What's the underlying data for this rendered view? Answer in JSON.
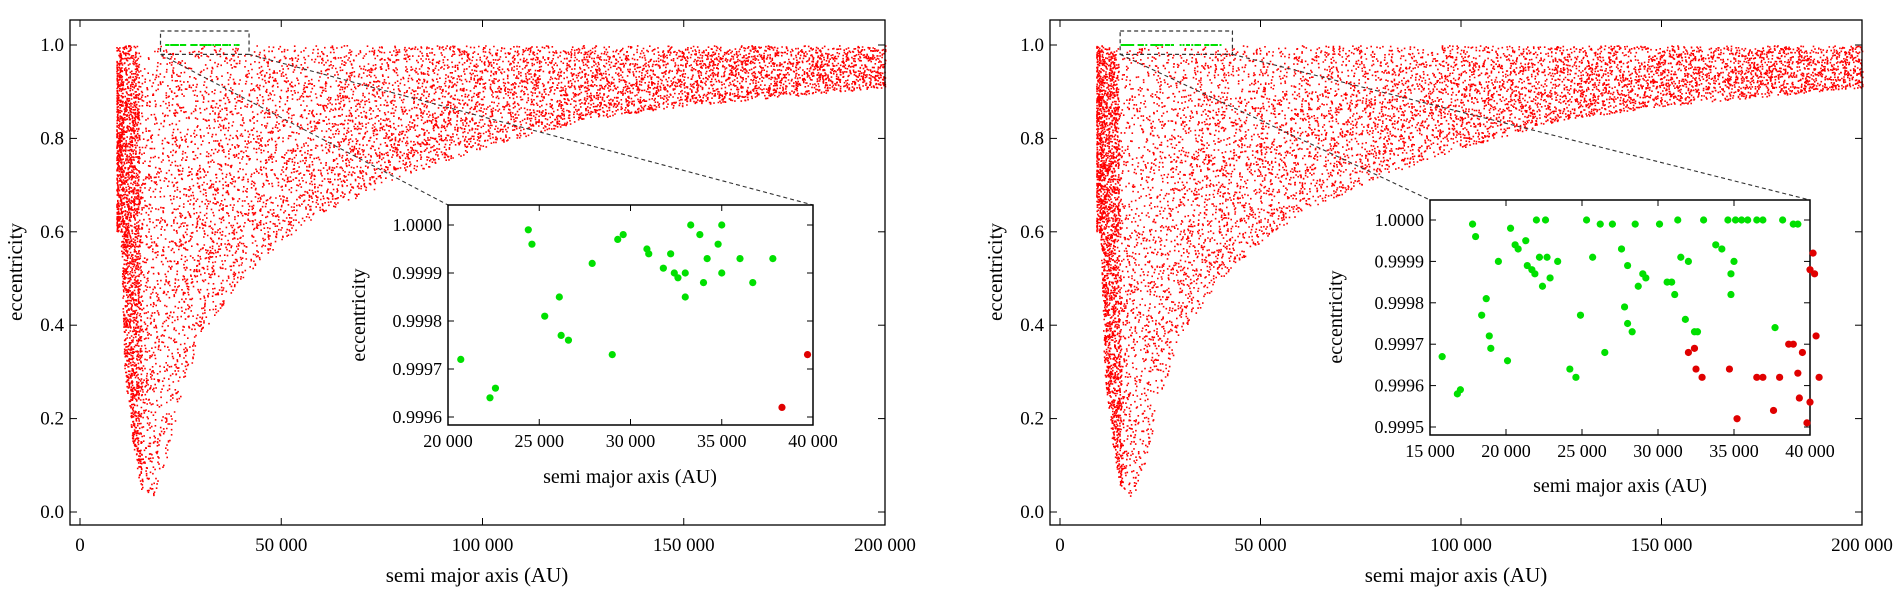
{
  "figure": {
    "panels": [
      {
        "main": {
          "xlabel": "semi major axis (AU)",
          "ylabel": "eccentricity",
          "xlim": [
            0,
            200000
          ],
          "ylim": [
            0,
            1.0
          ],
          "xticks": [
            {
              "v": 0,
              "label": "0"
            },
            {
              "v": 50000,
              "label": "50 000"
            },
            {
              "v": 100000,
              "label": "100 000"
            },
            {
              "v": 150000,
              "label": "150 000"
            },
            {
              "v": 200000,
              "label": "200 000"
            }
          ],
          "yticks": [
            {
              "v": 0,
              "label": "0.0"
            },
            {
              "v": 0.2,
              "label": "0.2"
            },
            {
              "v": 0.4,
              "label": "0.4"
            },
            {
              "v": 0.6,
              "label": "0.6"
            },
            {
              "v": 0.8,
              "label": "0.8"
            },
            {
              "v": 1.0,
              "label": "1.0"
            }
          ],
          "zoom_box": {
            "x": [
              20000,
              42000
            ],
            "y": [
              0.98,
              1.03
            ]
          }
        },
        "inset": {
          "xlabel": "semi major axis (AU)",
          "ylabel": "eccentricity",
          "xlim": [
            20000,
            40000
          ],
          "ylim": [
            0.9996,
            1.0
          ],
          "xticks": [
            {
              "v": 20000,
              "label": "20 000"
            },
            {
              "v": 25000,
              "label": "25 000"
            },
            {
              "v": 30000,
              "label": "30 000"
            },
            {
              "v": 35000,
              "label": "35 000"
            },
            {
              "v": 40000,
              "label": "40 000"
            }
          ],
          "yticks": [
            {
              "v": 0.9996,
              "label": "0.9996"
            },
            {
              "v": 0.9997,
              "label": "0.9997"
            },
            {
              "v": 0.9998,
              "label": "0.9998"
            },
            {
              "v": 0.9999,
              "label": "0.9999"
            },
            {
              "v": 1.0,
              "label": "1.0000"
            }
          ]
        }
      },
      {
        "main": {
          "xlabel": "semi major axis (AU)",
          "ylabel": "eccentricity",
          "xlim": [
            0,
            200000
          ],
          "ylim": [
            0,
            1.0
          ],
          "xticks": [
            {
              "v": 0,
              "label": "0"
            },
            {
              "v": 50000,
              "label": "50 000"
            },
            {
              "v": 100000,
              "label": "100 000"
            },
            {
              "v": 150000,
              "label": "150 000"
            },
            {
              "v": 200000,
              "label": "200 000"
            }
          ],
          "yticks": [
            {
              "v": 0,
              "label": "0.0"
            },
            {
              "v": 0.2,
              "label": "0.2"
            },
            {
              "v": 0.4,
              "label": "0.4"
            },
            {
              "v": 0.6,
              "label": "0.6"
            },
            {
              "v": 0.8,
              "label": "0.8"
            },
            {
              "v": 1.0,
              "label": "1.0"
            }
          ],
          "zoom_box": {
            "x": [
              15000,
              43000
            ],
            "y": [
              0.98,
              1.03
            ]
          }
        },
        "inset": {
          "xlabel": "semi major axis (AU)",
          "ylabel": "eccentricity",
          "xlim": [
            15000,
            40000
          ],
          "ylim": [
            0.9995,
            1.0
          ],
          "xticks": [
            {
              "v": 15000,
              "label": "15 000"
            },
            {
              "v": 20000,
              "label": "20 000"
            },
            {
              "v": 25000,
              "label": "25 000"
            },
            {
              "v": 30000,
              "label": "30 000"
            },
            {
              "v": 35000,
              "label": "35 000"
            },
            {
              "v": 40000,
              "label": "40 000"
            }
          ],
          "yticks": [
            {
              "v": 0.9995,
              "label": "0.9995"
            },
            {
              "v": 0.9996,
              "label": "0.9996"
            },
            {
              "v": 0.9997,
              "label": "0.9997"
            },
            {
              "v": 0.9998,
              "label": "0.9998"
            },
            {
              "v": 0.9999,
              "label": "0.9999"
            },
            {
              "v": 1.0,
              "label": "1.0000"
            }
          ]
        }
      }
    ]
  },
  "chart_data": [
    {
      "type": "scatter",
      "panel": "left-main",
      "xlabel": "semi major axis (AU)",
      "ylabel": "eccentricity",
      "xlim": [
        0,
        200000
      ],
      "ylim": [
        0,
        1.0
      ],
      "grid": false,
      "series": [
        {
          "color": "#ff0000",
          "marker_size": "small",
          "envelope_min_eccentricity": [
            [
              10000,
              0.6
            ],
            [
              11000,
              0.3
            ],
            [
              13000,
              0.15
            ],
            [
              15000,
              0.05
            ],
            [
              18000,
              0.03
            ],
            [
              21000,
              0.1
            ],
            [
              25000,
              0.25
            ],
            [
              30000,
              0.38
            ],
            [
              40000,
              0.5
            ],
            [
              50000,
              0.58
            ],
            [
              60000,
              0.64
            ],
            [
              80000,
              0.72
            ],
            [
              100000,
              0.78
            ],
            [
              125000,
              0.84
            ],
            [
              150000,
              0.87
            ],
            [
              200000,
              0.91
            ]
          ],
          "envelope_max_eccentricity": 1.0,
          "x_range": [
            9000,
            200000
          ]
        },
        {
          "color": "#00e000",
          "marker_size": "small",
          "x_range": [
            20000,
            40000
          ],
          "y_range": [
            0.9996,
            1.0
          ]
        }
      ]
    },
    {
      "type": "scatter",
      "panel": "left-inset",
      "xlabel": "semi major axis (AU)",
      "ylabel": "eccentricity",
      "xlim": [
        20000,
        40000
      ],
      "ylim": [
        0.9996,
        1.0
      ],
      "grid": false,
      "series": [
        {
          "color": "#00e000",
          "points": [
            [
              20700,
              0.99972
            ],
            [
              22300,
              0.99964
            ],
            [
              22600,
              0.99966
            ],
            [
              24400,
              0.99999
            ],
            [
              24600,
              0.99996
            ],
            [
              25300,
              0.99981
            ],
            [
              26100,
              0.99985
            ],
            [
              26200,
              0.99977
            ],
            [
              26600,
              0.99976
            ],
            [
              27900,
              0.99992
            ],
            [
              29000,
              0.99973
            ],
            [
              29300,
              0.99997
            ],
            [
              29600,
              0.99998
            ],
            [
              30900,
              0.99995
            ],
            [
              31000,
              0.99994
            ],
            [
              31800,
              0.99991
            ],
            [
              32200,
              0.99994
            ],
            [
              32400,
              0.9999
            ],
            [
              32600,
              0.99989
            ],
            [
              33000,
              0.9999
            ],
            [
              33000,
              0.99985
            ],
            [
              33300,
              1.0
            ],
            [
              33800,
              0.99998
            ],
            [
              34000,
              0.99988
            ],
            [
              34200,
              0.99993
            ],
            [
              34800,
              0.99996
            ],
            [
              35000,
              0.9999
            ],
            [
              35000,
              1.0
            ],
            [
              36000,
              0.99993
            ],
            [
              36700,
              0.99988
            ],
            [
              37800,
              0.99993
            ]
          ]
        },
        {
          "color": "#e00000",
          "points": [
            [
              38300,
              0.99962
            ],
            [
              39700,
              0.99973
            ]
          ]
        }
      ]
    },
    {
      "type": "scatter",
      "panel": "right-main",
      "xlabel": "semi major axis (AU)",
      "ylabel": "eccentricity",
      "xlim": [
        0,
        200000
      ],
      "ylim": [
        0,
        1.0
      ],
      "grid": false,
      "series": [
        {
          "color": "#ff0000",
          "marker_size": "small",
          "envelope_min_eccentricity": [
            [
              10000,
              0.6
            ],
            [
              11000,
              0.3
            ],
            [
              13000,
              0.15
            ],
            [
              15000,
              0.05
            ],
            [
              18000,
              0.03
            ],
            [
              21000,
              0.1
            ],
            [
              25000,
              0.25
            ],
            [
              30000,
              0.38
            ],
            [
              40000,
              0.5
            ],
            [
              50000,
              0.58
            ],
            [
              60000,
              0.64
            ],
            [
              80000,
              0.72
            ],
            [
              100000,
              0.78
            ],
            [
              125000,
              0.84
            ],
            [
              150000,
              0.87
            ],
            [
              200000,
              0.91
            ]
          ],
          "envelope_max_eccentricity": 1.0,
          "x_range": [
            9000,
            200000
          ]
        },
        {
          "color": "#00e000",
          "marker_size": "small",
          "x_range": [
            15000,
            40000
          ],
          "y_range": [
            0.9995,
            1.0
          ]
        }
      ]
    },
    {
      "type": "scatter",
      "panel": "right-inset",
      "xlabel": "semi major axis (AU)",
      "ylabel": "eccentricity",
      "xlim": [
        15000,
        40000
      ],
      "ylim": [
        0.9995,
        1.0
      ],
      "grid": false,
      "series": [
        {
          "color": "#00e000",
          "points": [
            [
              15800,
              0.99967
            ],
            [
              16800,
              0.99958
            ],
            [
              17000,
              0.99959
            ],
            [
              17800,
              0.99999
            ],
            [
              18000,
              0.99996
            ],
            [
              18400,
              0.99977
            ],
            [
              18700,
              0.99981
            ],
            [
              18900,
              0.99972
            ],
            [
              19000,
              0.99969
            ],
            [
              19500,
              0.9999
            ],
            [
              20100,
              0.99966
            ],
            [
              20300,
              0.99998
            ],
            [
              20600,
              0.99994
            ],
            [
              20800,
              0.99993
            ],
            [
              21300,
              0.99995
            ],
            [
              21400,
              0.99989
            ],
            [
              21700,
              0.99988
            ],
            [
              21900,
              0.99987
            ],
            [
              22000,
              1.0
            ],
            [
              22200,
              0.99991
            ],
            [
              22400,
              0.99984
            ],
            [
              22600,
              1.0
            ],
            [
              22900,
              0.99986
            ],
            [
              22700,
              0.99991
            ],
            [
              23400,
              0.9999
            ],
            [
              24200,
              0.99964
            ],
            [
              24600,
              0.99962
            ],
            [
              24900,
              0.99977
            ],
            [
              25300,
              1.0
            ],
            [
              25700,
              0.99991
            ],
            [
              26200,
              0.99999
            ],
            [
              26500,
              0.99968
            ],
            [
              27000,
              0.99999
            ],
            [
              27600,
              0.99993
            ],
            [
              27800,
              0.99979
            ],
            [
              28000,
              0.99975
            ],
            [
              28000,
              0.99989
            ],
            [
              28300,
              0.99973
            ],
            [
              28500,
              0.99999
            ],
            [
              28700,
              0.99984
            ],
            [
              29000,
              0.99987
            ],
            [
              29200,
              0.99986
            ],
            [
              30100,
              0.99999
            ],
            [
              30600,
              0.99985
            ],
            [
              30900,
              0.99985
            ],
            [
              31100,
              0.99982
            ],
            [
              31300,
              1.0
            ],
            [
              31500,
              0.99991
            ],
            [
              31800,
              0.99976
            ],
            [
              32000,
              0.9999
            ],
            [
              32400,
              0.99973
            ],
            [
              32600,
              0.99973
            ],
            [
              33000,
              1.0
            ],
            [
              33800,
              0.99994
            ],
            [
              34200,
              0.99993
            ],
            [
              34600,
              1.0
            ],
            [
              34800,
              0.99982
            ],
            [
              34800,
              0.99987
            ],
            [
              35000,
              0.9999
            ],
            [
              35100,
              1.0
            ],
            [
              35500,
              1.0
            ],
            [
              35900,
              1.0
            ],
            [
              36500,
              1.0
            ],
            [
              36900,
              1.0
            ],
            [
              37700,
              0.99974
            ],
            [
              38200,
              1.0
            ],
            [
              38900,
              0.99999
            ],
            [
              39200,
              0.99999
            ]
          ]
        },
        {
          "color": "#e00000",
          "points": [
            [
              32000,
              0.99968
            ],
            [
              32400,
              0.99969
            ],
            [
              32500,
              0.99964
            ],
            [
              32900,
              0.99962
            ],
            [
              34700,
              0.99964
            ],
            [
              35200,
              0.99952
            ],
            [
              36500,
              0.99962
            ],
            [
              36900,
              0.99962
            ],
            [
              37600,
              0.99954
            ],
            [
              38000,
              0.99962
            ],
            [
              38600,
              0.9997
            ],
            [
              38900,
              0.9997
            ],
            [
              39200,
              0.99963
            ],
            [
              39500,
              0.99968
            ],
            [
              39800,
              0.99951
            ],
            [
              40000,
              0.99956
            ],
            [
              40000,
              0.99988
            ],
            [
              40200,
              0.99992
            ],
            [
              40300,
              0.99987
            ],
            [
              40400,
              0.99972
            ],
            [
              40600,
              0.99962
            ],
            [
              39300,
              0.99957
            ]
          ]
        }
      ]
    }
  ]
}
